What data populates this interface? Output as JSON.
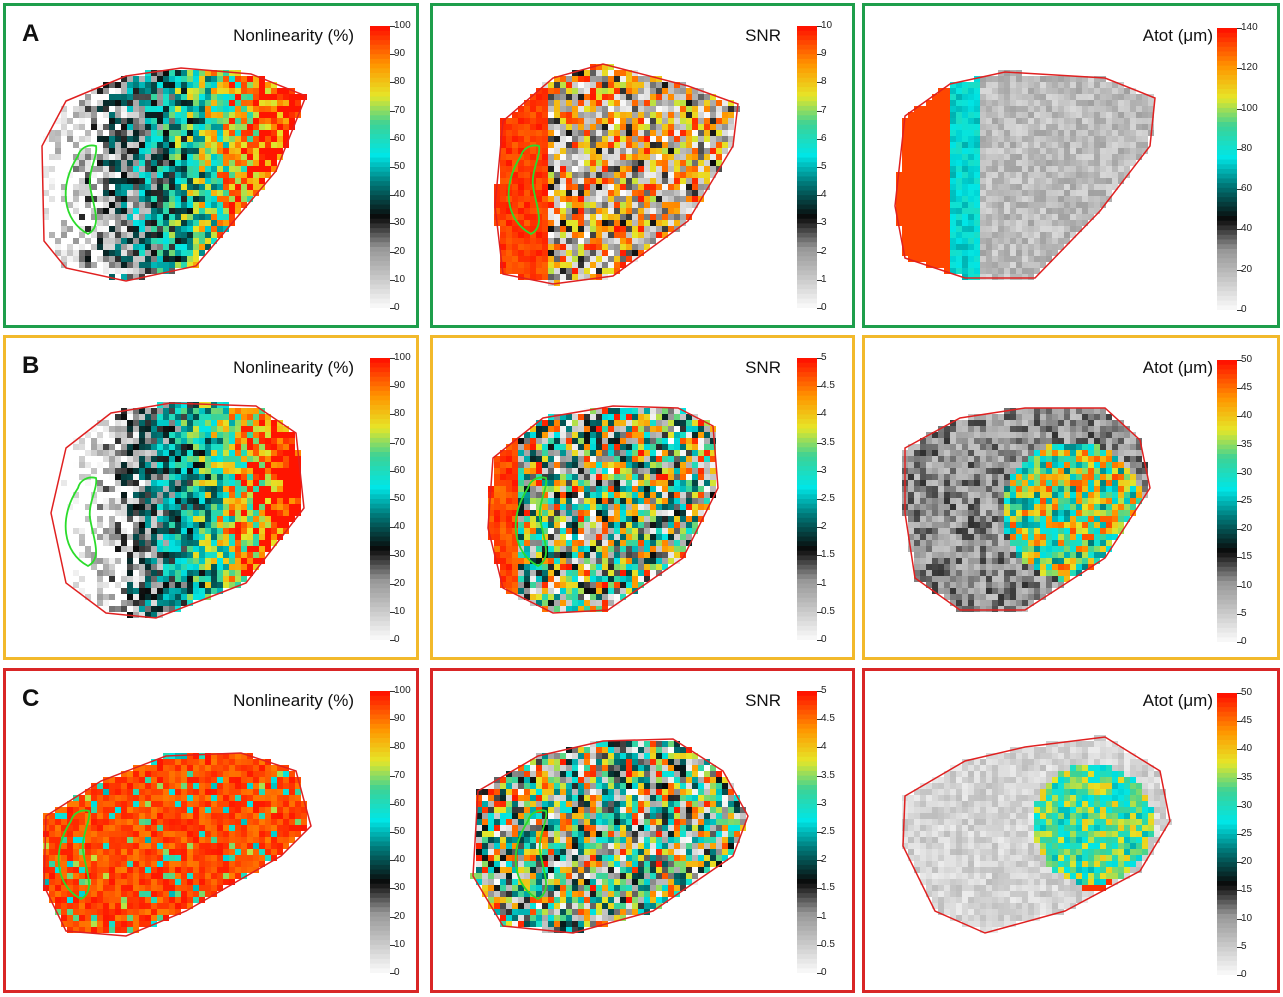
{
  "rows": [
    {
      "letter": "A",
      "border_color": "#1e9e4b",
      "panels": [
        {
          "title": "Nonlinearity (%)",
          "kind": "nonlin",
          "seed": 11,
          "ticks": [
            "100",
            "90",
            "80",
            "70",
            "60",
            "50",
            "40",
            "30",
            "20",
            "10",
            "0"
          ],
          "roi": true
        },
        {
          "title": "SNR",
          "kind": "snrA",
          "seed": 23,
          "ticks": [
            "10",
            "9",
            "8",
            "7",
            "6",
            "5",
            "4",
            "3",
            "2",
            "1",
            "0"
          ],
          "roi": true
        },
        {
          "title": "Atot (μm)",
          "kind": "atotA",
          "seed": 37,
          "ticks": [
            "140",
            "120",
            "100",
            "80",
            "60",
            "40",
            "20",
            "0"
          ],
          "roi": false
        }
      ]
    },
    {
      "letter": "B",
      "border_color": "#f2b92b",
      "panels": [
        {
          "title": "Nonlinearity (%)",
          "kind": "nonlinB",
          "seed": 41,
          "ticks": [
            "100",
            "90",
            "80",
            "70",
            "60",
            "50",
            "40",
            "30",
            "20",
            "10",
            "0"
          ],
          "roi": true
        },
        {
          "title": "SNR",
          "kind": "snrB",
          "seed": 53,
          "ticks": [
            "5",
            "4.5",
            "4",
            "3.5",
            "3",
            "2.5",
            "2",
            "1.5",
            "1",
            "0.5",
            "0"
          ],
          "roi": true
        },
        {
          "title": "Atot (μm)",
          "kind": "atotB",
          "seed": 67,
          "ticks": [
            "50",
            "45",
            "40",
            "35",
            "30",
            "25",
            "20",
            "15",
            "10",
            "5",
            "0"
          ],
          "roi": false
        }
      ]
    },
    {
      "letter": "C",
      "border_color": "#d92626",
      "panels": [
        {
          "title": "Nonlinearity (%)",
          "kind": "nonlinC",
          "seed": 71,
          "ticks": [
            "100",
            "90",
            "80",
            "70",
            "60",
            "50",
            "40",
            "30",
            "20",
            "10",
            "0"
          ],
          "roi": true
        },
        {
          "title": "SNR",
          "kind": "snrC",
          "seed": 83,
          "ticks": [
            "5",
            "4.5",
            "4",
            "3.5",
            "3",
            "2.5",
            "2",
            "1.5",
            "1",
            "0.5",
            "0"
          ],
          "roi": true
        },
        {
          "title": "Atot (μm)",
          "kind": "atotC",
          "seed": 97,
          "ticks": [
            "50",
            "45",
            "40",
            "35",
            "30",
            "25",
            "20",
            "15",
            "10",
            "5",
            "0"
          ],
          "roi": false
        }
      ]
    }
  ]
}
